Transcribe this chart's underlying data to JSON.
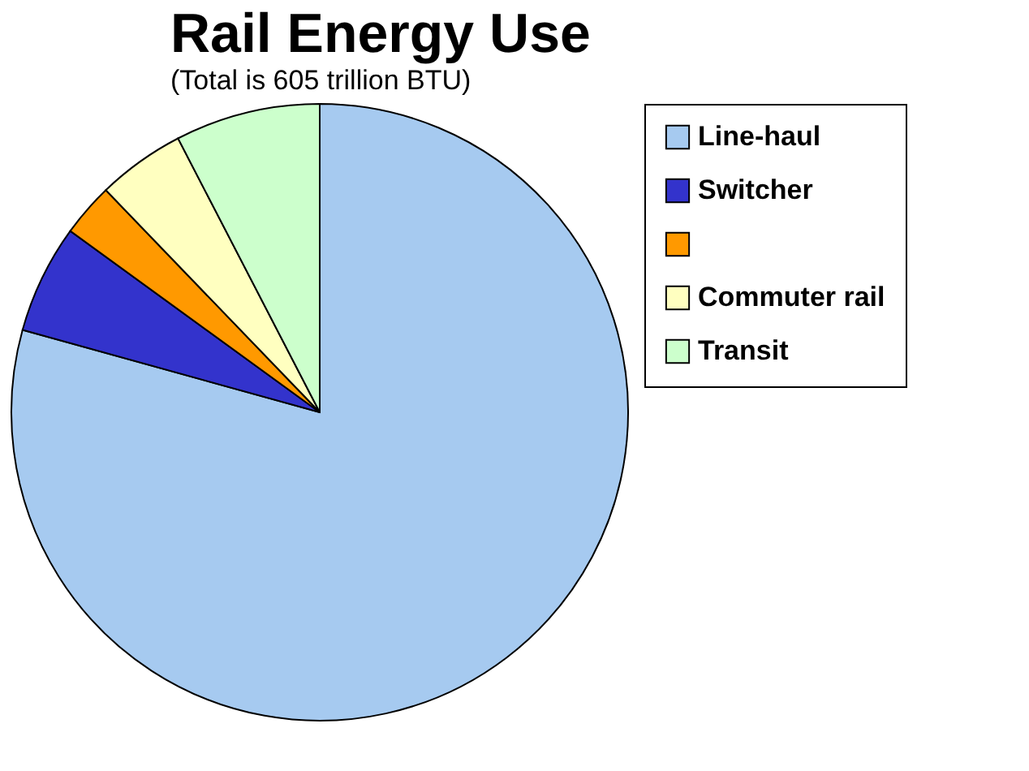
{
  "chart_data": {
    "type": "pie",
    "title": "Rail Energy Use",
    "subtitle": "(Total is 605 trillion BTU)",
    "categories": [
      "Line-haul",
      "Switcher",
      null,
      "Commuter rail",
      "Transit"
    ],
    "values": [
      79.3,
      5.7,
      2.8,
      4.6,
      7.6
    ],
    "colors": [
      "#a6caf0",
      "#3333cc",
      "#ff9900",
      "#ffffc0",
      "#ccffcc"
    ],
    "legend": "right"
  }
}
